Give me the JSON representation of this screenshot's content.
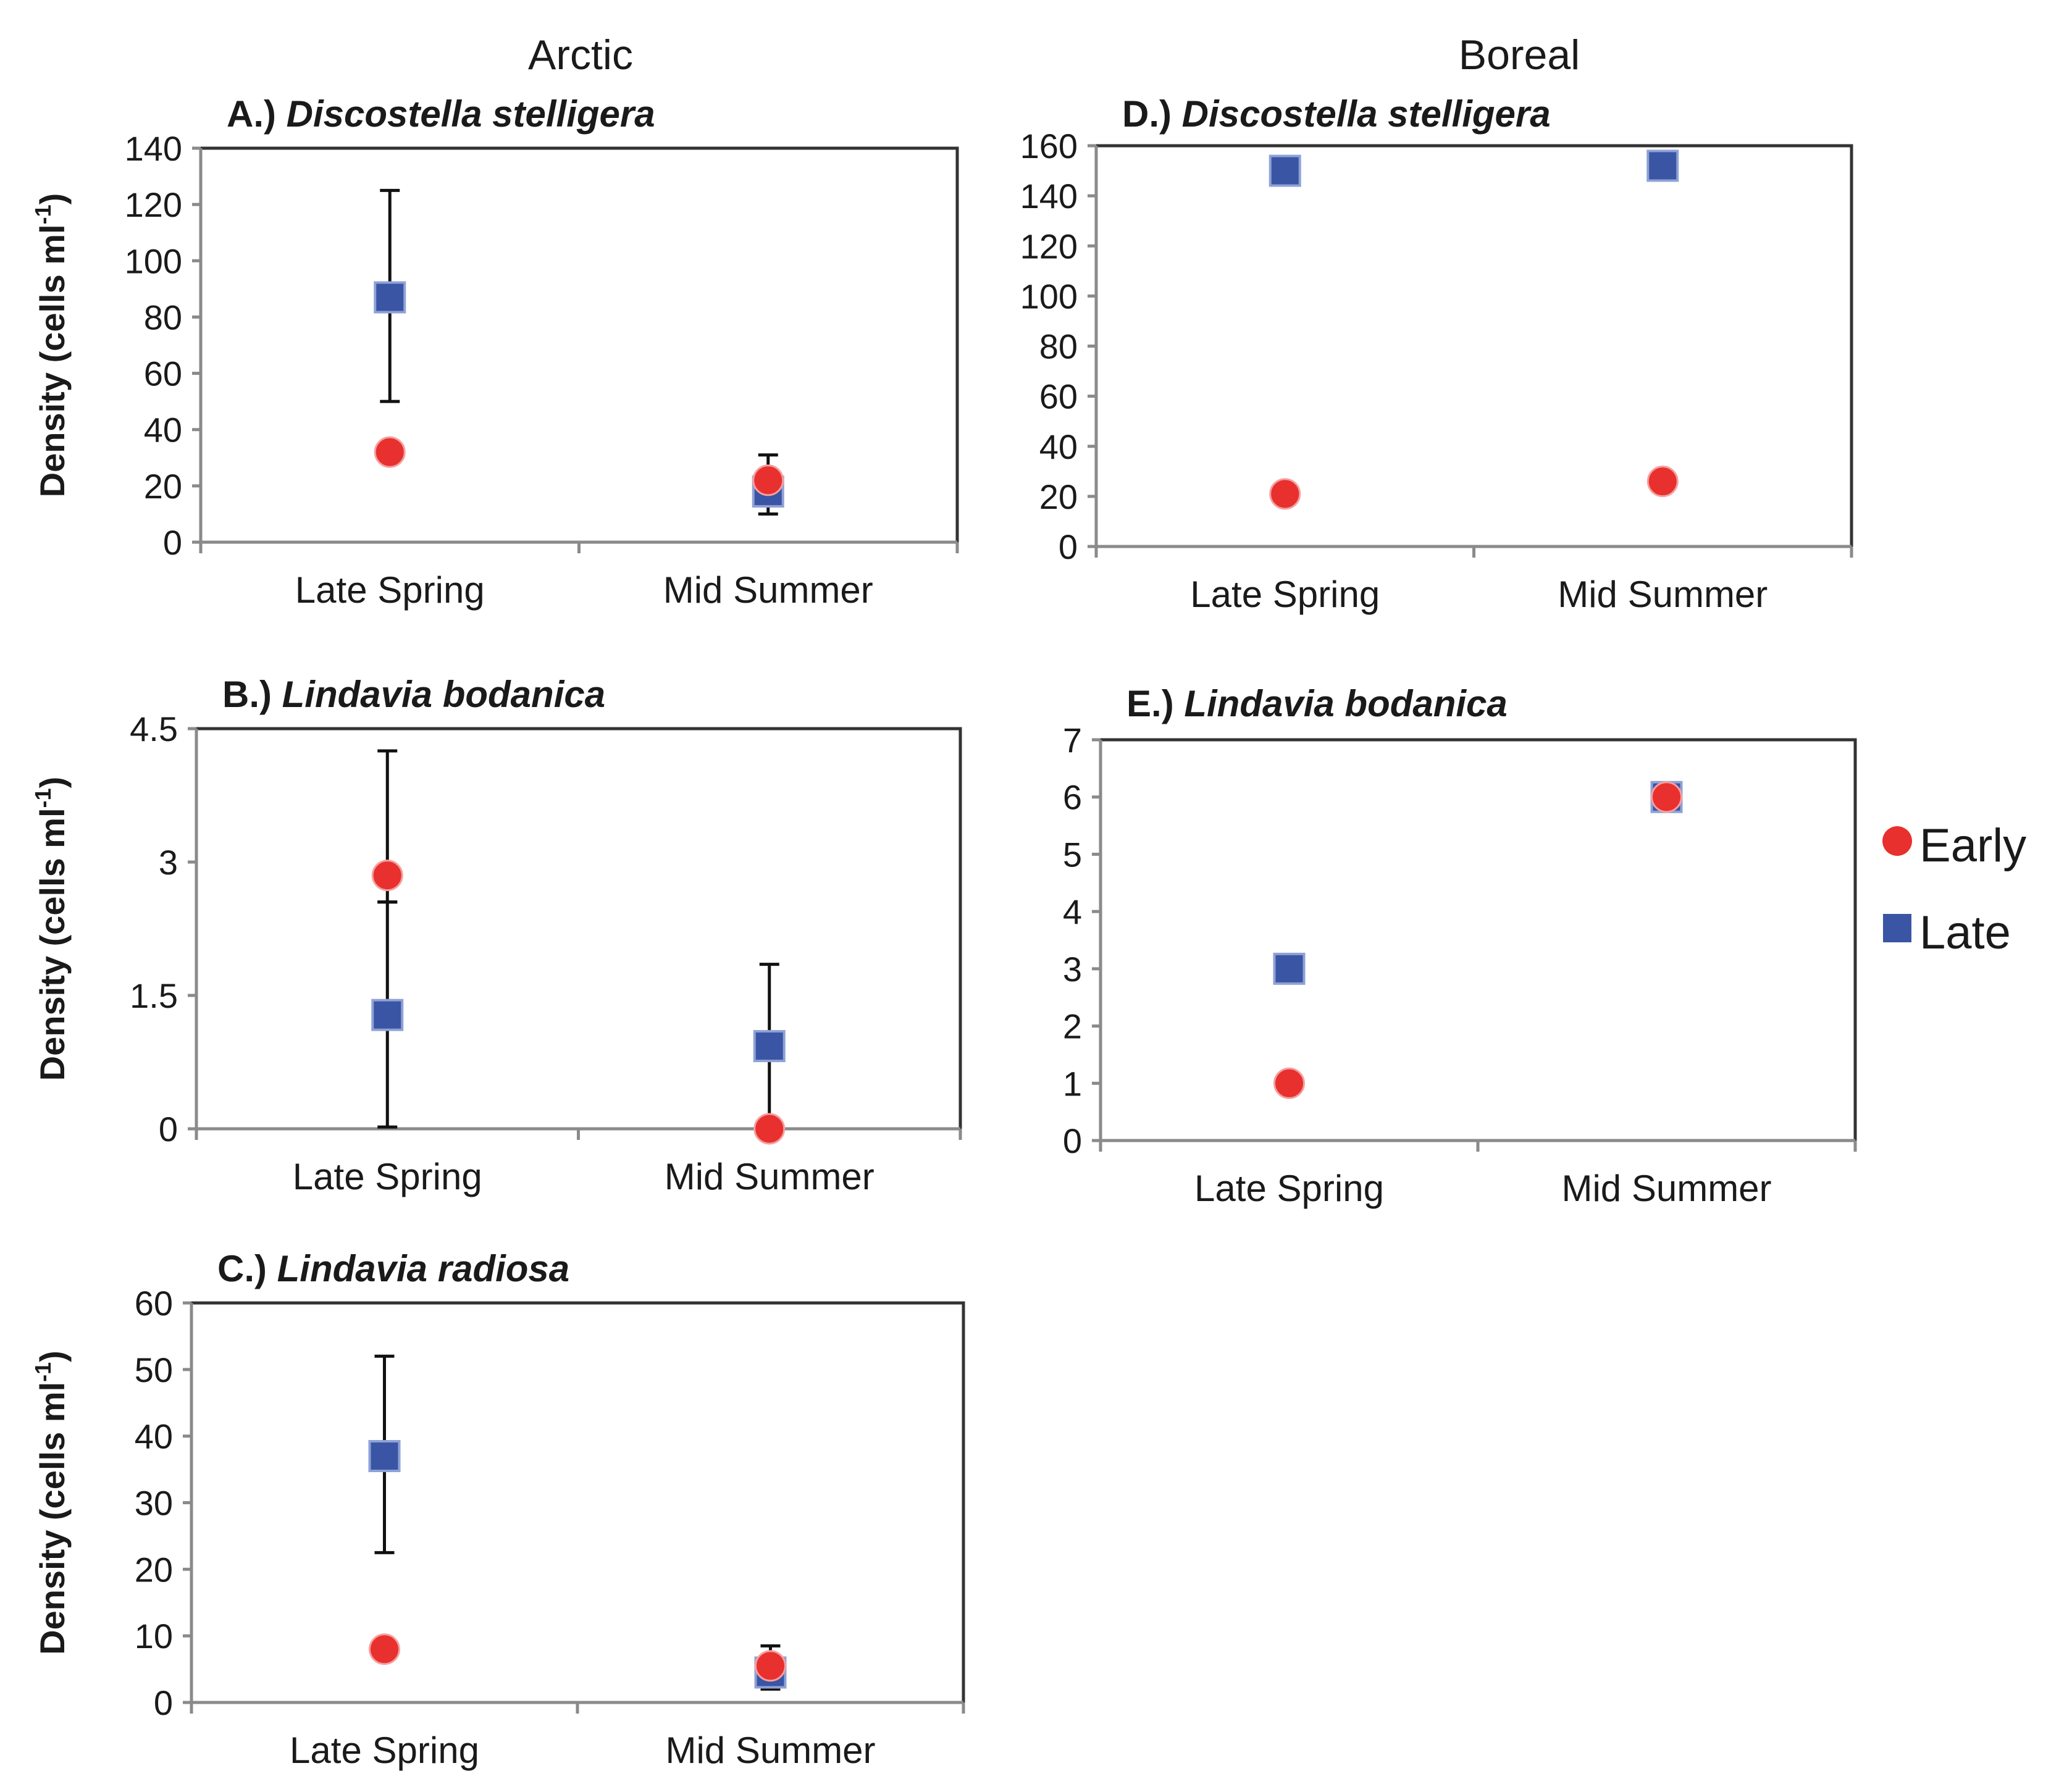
{
  "colors": {
    "early": "#e8302e",
    "late": "#3a55a4"
  },
  "column_headers": [
    "Arctic",
    "Boreal"
  ],
  "legend": [
    {
      "label": "Early",
      "marker": "circle",
      "color": "#e8302e"
    },
    {
      "label": "Late",
      "marker": "square",
      "color": "#3a55a4"
    }
  ],
  "chart_data": [
    {
      "id": "A",
      "type": "scatter",
      "region": "Arctic",
      "title_prefix": "A.)",
      "title_species": "Discostella stelligera",
      "ylabel_main": "Density (cells ml",
      "ylabel_sup": "-1",
      "ylabel_end": ")",
      "categories": [
        "Late Spring",
        "Mid Summer"
      ],
      "ylim": [
        0,
        140
      ],
      "yticks": [
        0,
        20,
        40,
        60,
        80,
        100,
        120,
        140
      ],
      "series": [
        {
          "name": "Early",
          "values": [
            32,
            22
          ],
          "err_low": [
            null,
            null
          ],
          "err_high": [
            null,
            null
          ]
        },
        {
          "name": "Late",
          "values": [
            87,
            18
          ],
          "err_low": [
            50,
            10
          ],
          "err_high": [
            125,
            31
          ]
        }
      ]
    },
    {
      "id": "B",
      "type": "scatter",
      "region": "Arctic",
      "title_prefix": "B.)",
      "title_species": "Lindavia bodanica",
      "ylabel_main": "Density (cells ml",
      "ylabel_sup": "-1",
      "ylabel_end": ")",
      "categories": [
        "Late Spring",
        "Mid Summer"
      ],
      "ylim": [
        0,
        4.5
      ],
      "yticks": [
        0,
        1.5,
        3,
        4.5
      ],
      "series": [
        {
          "name": "Early",
          "values": [
            2.85,
            0
          ],
          "err_low": [
            2.55,
            null
          ],
          "err_high": [
            4.25,
            null
          ]
        },
        {
          "name": "Late",
          "values": [
            1.28,
            0.93
          ],
          "err_low": [
            0.02,
            0.02
          ],
          "err_high": [
            2.55,
            1.85
          ]
        }
      ]
    },
    {
      "id": "C",
      "type": "scatter",
      "region": "Arctic",
      "title_prefix": "C.)",
      "title_species": "Lindavia radiosa",
      "ylabel_main": "Density (cells ml",
      "ylabel_sup": "-1",
      "ylabel_end": ")",
      "categories": [
        "Late Spring",
        "Mid Summer"
      ],
      "ylim": [
        0,
        60
      ],
      "yticks": [
        0,
        10,
        20,
        30,
        40,
        50,
        60
      ],
      "series": [
        {
          "name": "Early",
          "values": [
            8,
            5.5
          ],
          "err_low": [
            null,
            null
          ],
          "err_high": [
            null,
            null
          ]
        },
        {
          "name": "Late",
          "values": [
            37,
            4.5
          ],
          "err_low": [
            22.5,
            2
          ],
          "err_high": [
            52,
            8.5
          ]
        }
      ]
    },
    {
      "id": "D",
      "type": "scatter",
      "region": "Boreal",
      "title_prefix": "D.)",
      "title_species": "Discostella stelligera",
      "ylabel_main": "",
      "ylabel_sup": "",
      "ylabel_end": "",
      "categories": [
        "Late Spring",
        "Mid Summer"
      ],
      "ylim": [
        0,
        160
      ],
      "yticks": [
        0,
        20,
        40,
        60,
        80,
        100,
        120,
        140,
        160
      ],
      "series": [
        {
          "name": "Early",
          "values": [
            21,
            26
          ],
          "err_low": [
            null,
            null
          ],
          "err_high": [
            null,
            null
          ]
        },
        {
          "name": "Late",
          "values": [
            150,
            152
          ],
          "err_low": [
            null,
            null
          ],
          "err_high": [
            null,
            null
          ]
        }
      ]
    },
    {
      "id": "E",
      "type": "scatter",
      "region": "Boreal",
      "title_prefix": "E.)",
      "title_species": "Lindavia bodanica",
      "ylabel_main": "",
      "ylabel_sup": "",
      "ylabel_end": "",
      "categories": [
        "Late Spring",
        "Mid Summer"
      ],
      "ylim": [
        0,
        7
      ],
      "yticks": [
        0,
        1,
        2,
        3,
        4,
        5,
        6,
        7
      ],
      "series": [
        {
          "name": "Early",
          "values": [
            1,
            6
          ],
          "err_low": [
            null,
            null
          ],
          "err_high": [
            null,
            null
          ]
        },
        {
          "name": "Late",
          "values": [
            3,
            6
          ],
          "err_low": [
            null,
            null
          ],
          "err_high": [
            null,
            null
          ]
        }
      ]
    }
  ]
}
